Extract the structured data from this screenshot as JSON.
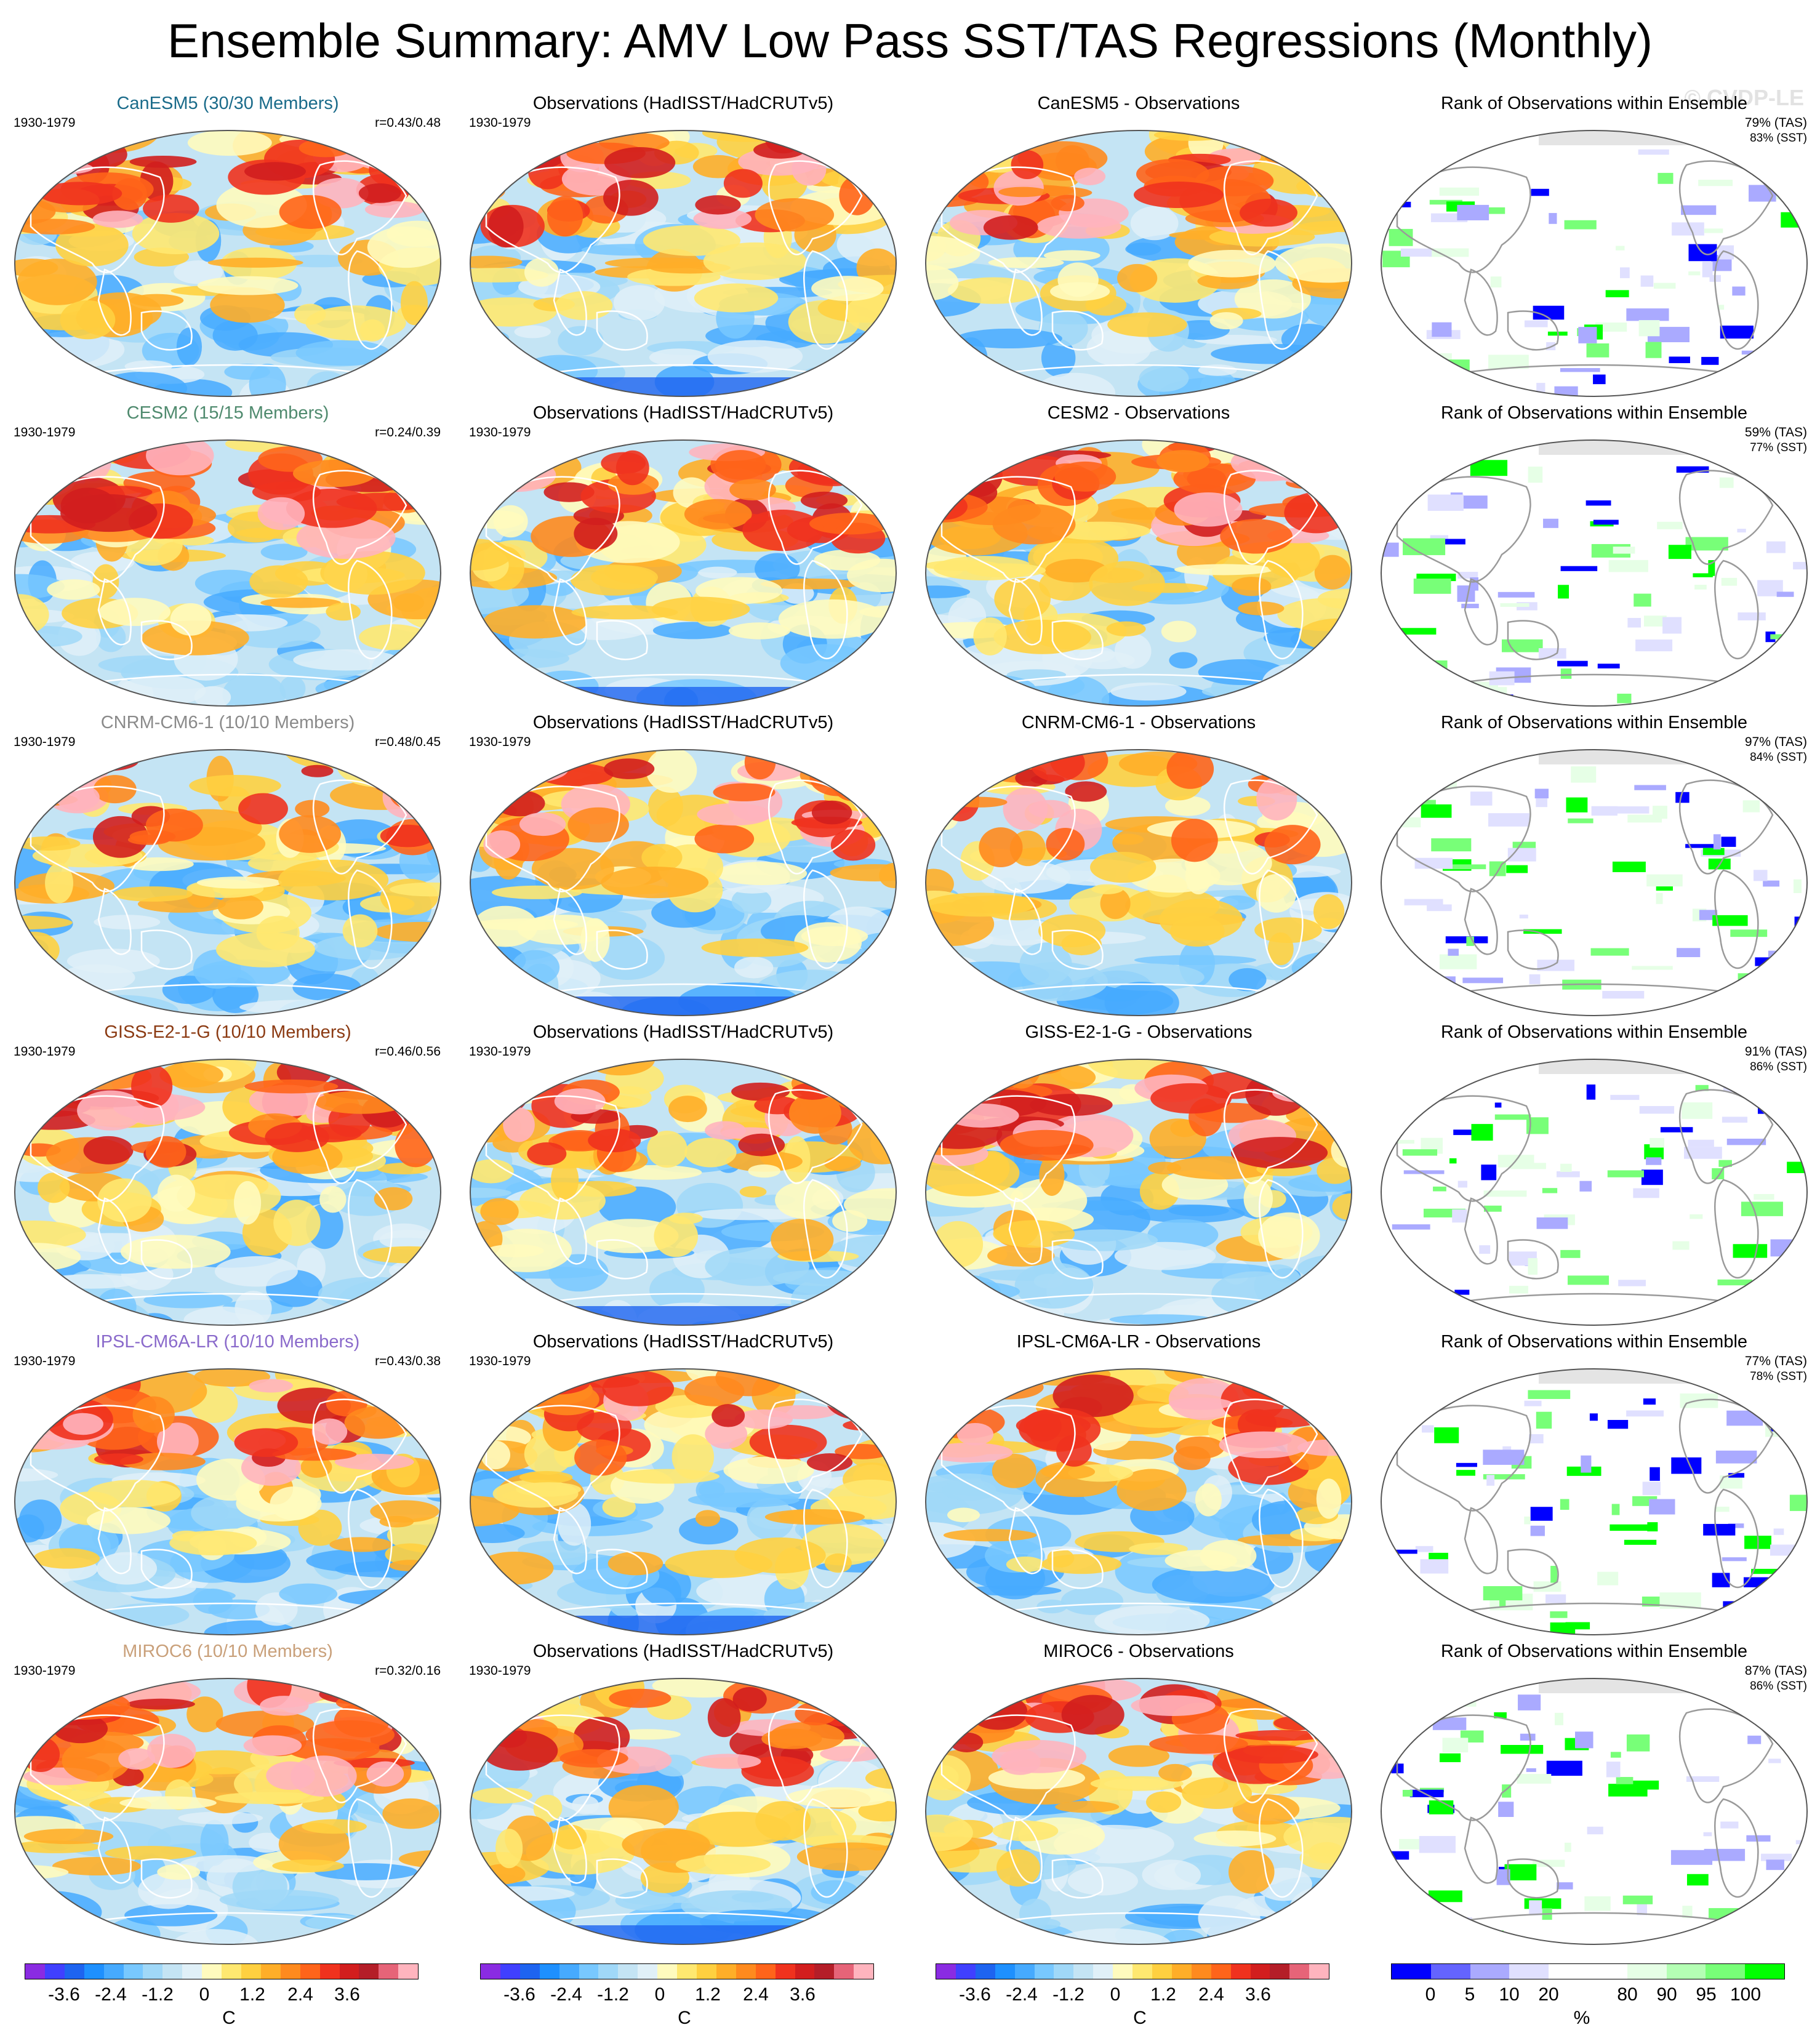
{
  "title": "Ensemble Summary: AMV Low Pass SST/TAS Regressions (Monthly)",
  "watermark": "© CVDP-LE",
  "period": "1930-1979",
  "obs_title": "Observations (HadISST/HadCRUTv5)",
  "rank_title": "Rank of Observations within Ensemble",
  "rows": [
    {
      "model": "CanESM5",
      "ens_title": "CanESM5 (30/30 Members)",
      "title_color": "#1a6b8a",
      "r": "r=0.43/0.48",
      "diff_title": "CanESM5 - Observations",
      "rank_tas": "79% (TAS)",
      "rank_sst": "83% (SST)",
      "warm": 0.85
    },
    {
      "model": "CESM2",
      "ens_title": "CESM2 (15/15 Members)",
      "title_color": "#4f8a6e",
      "r": "r=0.24/0.39",
      "diff_title": "CESM2 - Observations",
      "rank_tas": "59% (TAS)",
      "rank_sst": "77% (SST)",
      "warm": 0.95
    },
    {
      "model": "CNRM-CM6-1",
      "ens_title": "CNRM-CM6-1 (10/10 Members)",
      "title_color": "#8a8a8a",
      "r": "r=0.48/0.45",
      "diff_title": "CNRM-CM6-1 - Observations",
      "rank_tas": "97% (TAS)",
      "rank_sst": "84% (SST)",
      "warm": 0.45
    },
    {
      "model": "GISS-E2-1-G",
      "ens_title": "GISS-E2-1-G (10/10 Members)",
      "title_color": "#8b3a12",
      "r": "r=0.46/0.56",
      "diff_title": "GISS-E2-1-G - Observations",
      "rank_tas": "91% (TAS)",
      "rank_sst": "86% (SST)",
      "warm": 0.9
    },
    {
      "model": "IPSL-CM6A-LR",
      "ens_title": "IPSL-CM6A-LR (10/10 Members)",
      "title_color": "#8a6acb",
      "r": "r=0.43/0.38",
      "diff_title": "IPSL-CM6A-LR - Observations",
      "rank_tas": "77% (TAS)",
      "rank_sst": "78% (SST)",
      "warm": 0.8
    },
    {
      "model": "MIROC6",
      "ens_title": "MIROC6 (10/10 Members)",
      "title_color": "#c9a07a",
      "r": "r=0.32/0.16",
      "diff_title": "MIROC6 - Observations",
      "rank_tas": "87% (TAS)",
      "rank_sst": "86% (SST)",
      "warm": 0.95
    }
  ],
  "colorbars": {
    "regression": {
      "colors": [
        "#8a2be2",
        "#4040ff",
        "#1e64f0",
        "#1e90ff",
        "#46aaff",
        "#78c8ff",
        "#a0d8f8",
        "#c4e4f4",
        "#e0f0f8",
        "#fffbbe",
        "#ffe870",
        "#ffd040",
        "#ffae28",
        "#ff8a1e",
        "#ff641a",
        "#f0321e",
        "#d21e1e",
        "#b41e28",
        "#e66478",
        "#ffb4be"
      ],
      "ticks": [
        "-3.6",
        "-2.4",
        "-1.2",
        "0",
        "1.2",
        "2.4",
        "3.6"
      ],
      "unit": "C"
    },
    "rank": {
      "colors": [
        "#0000ff",
        "#6464ff",
        "#aaaaff",
        "#e0e0ff",
        "#ffffff",
        "#ffffff",
        "#e6ffe6",
        "#b4ffb4",
        "#78ff78",
        "#00ff00"
      ],
      "ticks": [
        "0",
        "5",
        "10",
        "20",
        "80",
        "90",
        "95",
        "100"
      ],
      "unit": "%"
    }
  }
}
